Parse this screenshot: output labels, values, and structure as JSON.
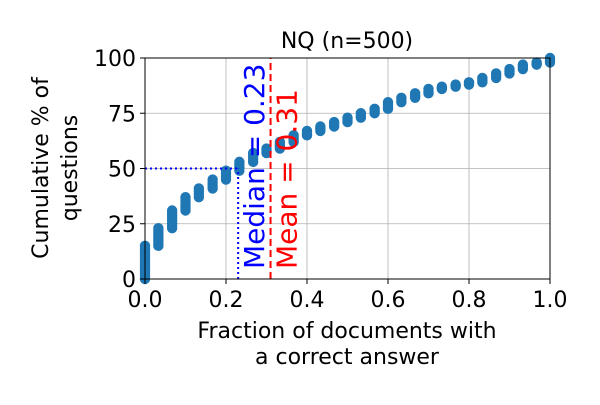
{
  "chart_data": {
    "type": "scatter",
    "title": "NQ (n=500)",
    "xlabel_lines": [
      "Fraction of documents with",
      "a correct answer"
    ],
    "ylabel_lines": [
      "Cumulative % of",
      "questions"
    ],
    "xlim": [
      0,
      1
    ],
    "ylim": [
      0,
      100
    ],
    "xticks": [
      0,
      0.2,
      0.4,
      0.6,
      0.8,
      1
    ],
    "xtick_labels": [
      "0.0",
      "0.2",
      "0.4",
      "0.6",
      "0.8",
      "1.0"
    ],
    "yticks": [
      0,
      25,
      50,
      75,
      100
    ],
    "ytick_labels": [
      "0",
      "25",
      "50",
      "75",
      "100"
    ],
    "grid": true,
    "marker_color": "#1f77b4",
    "series": [
      {
        "x": [
          0.0,
          0.033,
          0.067,
          0.1,
          0.133,
          0.167,
          0.2,
          0.233,
          0.267,
          0.3,
          0.333,
          0.367,
          0.4,
          0.433,
          0.467,
          0.5,
          0.533,
          0.567,
          0.6,
          0.633,
          0.667,
          0.7,
          0.733,
          0.767,
          0.8,
          0.833,
          0.867,
          0.9,
          0.933,
          0.967,
          1.0
        ],
        "ymin": [
          0,
          15,
          23,
          31,
          37,
          41,
          45,
          49,
          53,
          57,
          59,
          62,
          65,
          67,
          69,
          71,
          73,
          75,
          77,
          80,
          82,
          84,
          86,
          87,
          88,
          89,
          91,
          93,
          95,
          97,
          98
        ],
        "ymax": [
          15,
          23,
          31,
          37,
          41,
          45,
          49,
          53,
          57,
          59,
          62,
          65,
          67,
          69,
          71,
          73,
          75,
          77,
          80,
          82,
          84,
          86,
          87,
          88,
          89,
          91,
          93,
          95,
          97,
          98,
          100
        ]
      }
    ],
    "annotations": [
      {
        "label": "Median = 0.23",
        "x": 0.23,
        "color": "#0000ff",
        "linestyle": "dotted",
        "horizontal_to_y": 50
      },
      {
        "label": "Mean = 0.31",
        "x": 0.31,
        "color": "#ff0000",
        "linestyle": "dashed"
      }
    ]
  }
}
